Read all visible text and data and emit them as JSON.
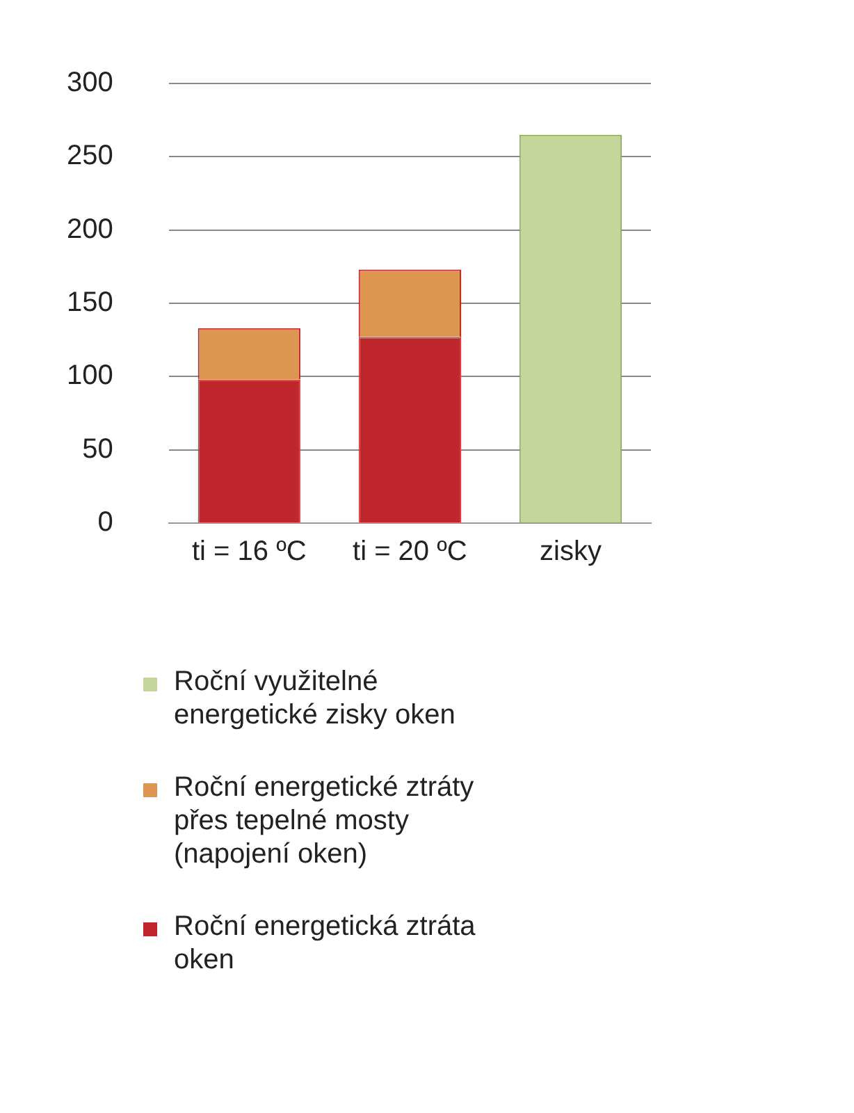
{
  "chart_data": {
    "type": "bar",
    "stacked": true,
    "categories": [
      "ti = 16 ºC",
      "ti = 20 ºC",
      "zisky"
    ],
    "series": [
      {
        "name": "Roční energetická ztráta oken",
        "color": "#c0272d",
        "values": [
          98,
          127,
          null
        ]
      },
      {
        "name": "Roční energetické ztráty přes tepelné mosty (napojení oken)",
        "color": "#dd9651",
        "values": [
          35,
          46,
          null
        ]
      },
      {
        "name": "Roční využitelné energetické zisky oken",
        "color": "#c5d69b",
        "values": [
          null,
          null,
          265
        ]
      }
    ],
    "ylim": [
      0,
      300
    ],
    "yticks": [
      0,
      50,
      100,
      150,
      200,
      250,
      300
    ],
    "grid": "y",
    "legend": "bottom"
  }
}
